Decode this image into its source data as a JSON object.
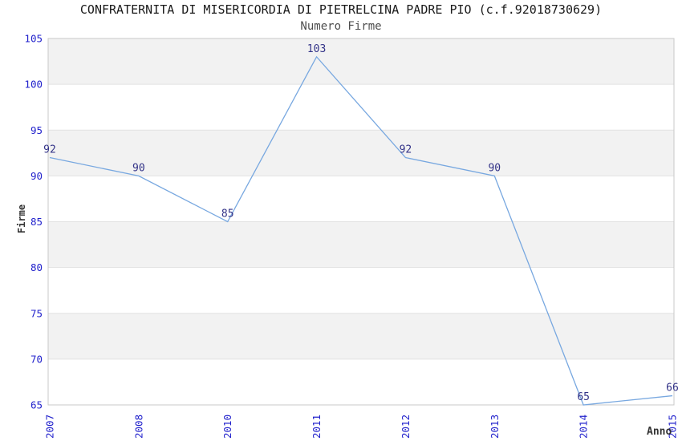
{
  "chart_data": {
    "type": "line",
    "title": "CONFRATERNITA DI MISERICORDIA DI PIETRELCINA PADRE PIO (c.f.92018730629)",
    "subtitle": "Numero Firme",
    "xlabel": "Anno",
    "ylabel": "Firme",
    "categories": [
      "2007",
      "2008",
      "2010",
      "2011",
      "2012",
      "2013",
      "2014",
      "2015"
    ],
    "values": [
      92,
      90,
      85,
      103,
      92,
      90,
      65,
      66
    ],
    "ylim": [
      65,
      105
    ],
    "ytick_step": 5,
    "grid": "horizontal-bands-alternating",
    "legend": "none",
    "markers": "none",
    "colors": {
      "line": "#78a8e0",
      "tick_label": "#2222cc",
      "data_label": "#333388",
      "band_gray": "#f2f2f2",
      "band_white": "#ffffff",
      "grid_line": "#e2e2e2",
      "plot_border": "#c8c8c8",
      "title": "#1a1a1a",
      "subtitle": "#4d4d4d",
      "axis_label": "#333333"
    }
  }
}
